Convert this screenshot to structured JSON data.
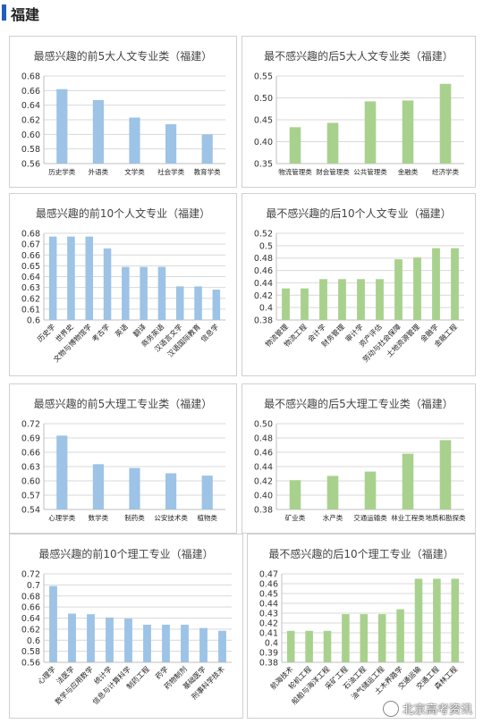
{
  "header": {
    "title": "福建"
  },
  "watermark": {
    "text": "北京高考资讯",
    "icon": "wechat-icon"
  },
  "colors": {
    "blue": "#9dc3e6",
    "green": "#a9d18e"
  },
  "chart_data": [
    {
      "type": "bar",
      "color": "blue",
      "title": "最感兴趣的前5大人文专业类（福建）",
      "categories": [
        "历史学类",
        "外语类",
        "文学类",
        "社会学类",
        "教育学类"
      ],
      "values": [
        0.662,
        0.647,
        0.623,
        0.614,
        0.6
      ],
      "ylim": [
        0.56,
        0.68
      ],
      "yticks": [
        "0.68",
        "0.66",
        "0.64",
        "0.62",
        "0.60",
        "0.58",
        "0.56"
      ],
      "label_rotate": false
    },
    {
      "type": "bar",
      "color": "green",
      "title": "最不感兴趣的后5大人文专业类（福建）",
      "categories": [
        "物流管理类",
        "财会管理类",
        "公共管理类",
        "金融类",
        "经济学类"
      ],
      "values": [
        0.433,
        0.443,
        0.492,
        0.494,
        0.532
      ],
      "ylim": [
        0.35,
        0.55
      ],
      "yticks": [
        "0.55",
        "0.50",
        "0.45",
        "0.40",
        "0.35"
      ],
      "label_rotate": false
    },
    {
      "type": "bar",
      "color": "blue",
      "title": "最感兴趣的前10个人文专业（福建）",
      "categories": [
        "历史学",
        "世界史",
        "文物与博物馆学",
        "考古学",
        "英语",
        "翻译",
        "商务英语",
        "汉语言文学",
        "汉语国际教育",
        "信息学"
      ],
      "values": [
        0.677,
        0.677,
        0.677,
        0.666,
        0.649,
        0.649,
        0.649,
        0.631,
        0.631,
        0.628
      ],
      "ylim": [
        0.6,
        0.68
      ],
      "yticks": [
        "0.68",
        "0.67",
        "0.66",
        "0.65",
        "0.64",
        "0.63",
        "0.62",
        "0.61",
        "0.6"
      ],
      "label_rotate": true
    },
    {
      "type": "bar",
      "color": "green",
      "title": "最不感兴趣的后10个人文专业（福建）",
      "categories": [
        "物流管理",
        "物流工程",
        "会计学",
        "财务管理",
        "审计学",
        "资产评估",
        "劳动与社会保障",
        "土地资源管理",
        "金融学",
        "金融工程"
      ],
      "values": [
        0.431,
        0.431,
        0.446,
        0.446,
        0.446,
        0.446,
        0.478,
        0.481,
        0.496,
        0.496
      ],
      "ylim": [
        0.38,
        0.52
      ],
      "yticks": [
        "0.52",
        "0.5",
        "0.48",
        "0.46",
        "0.44",
        "0.42",
        "0.4",
        "0.38"
      ],
      "label_rotate": true
    },
    {
      "type": "bar",
      "color": "blue",
      "title": "最感兴趣的前5大理工专业类（福建）",
      "categories": [
        "心理学类",
        "数学类",
        "制药类",
        "公安技术类",
        "植物类"
      ],
      "values": [
        0.695,
        0.635,
        0.627,
        0.616,
        0.611
      ],
      "ylim": [
        0.54,
        0.72
      ],
      "yticks": [
        "0.72",
        "0.69",
        "0.66",
        "0.63",
        "0.60",
        "0.57",
        "0.54"
      ],
      "label_rotate": false
    },
    {
      "type": "bar",
      "color": "green",
      "title": "最不感兴趣的后5大理工专业类（福建）",
      "categories": [
        "矿业类",
        "水产类",
        "交通运输类",
        "林业工程类",
        "地质和勘探类"
      ],
      "values": [
        0.421,
        0.427,
        0.433,
        0.458,
        0.477
      ],
      "ylim": [
        0.38,
        0.5
      ],
      "yticks": [
        "0.50",
        "0.48",
        "0.46",
        "0.44",
        "0.42",
        "0.40",
        "0.38"
      ],
      "label_rotate": false
    },
    {
      "type": "bar",
      "color": "blue",
      "title": "最感兴趣的前10个理工专业（福建）",
      "categories": [
        "心理学",
        "法医学",
        "数学与应用数学",
        "统计学",
        "信息与计算科学",
        "制药工程",
        "药学",
        "药物制剂",
        "基础医学",
        "刑事科学技术"
      ],
      "values": [
        0.698,
        0.648,
        0.647,
        0.641,
        0.639,
        0.628,
        0.628,
        0.628,
        0.622,
        0.617
      ],
      "ylim": [
        0.56,
        0.72
      ],
      "yticks": [
        "0.72",
        "0.7",
        "0.68",
        "0.66",
        "0.64",
        "0.62",
        "0.6",
        "0.58",
        "0.56"
      ],
      "label_rotate": true
    },
    {
      "type": "bar",
      "color": "green",
      "title": "最不感兴趣的后10个理工专业（福建）",
      "categories": [
        "航海技术",
        "轮机工程",
        "船舶与海洋工程",
        "采矿工程",
        "石油工程",
        "油气储运工程",
        "土木养路学",
        "交通运输",
        "交通工程",
        "森林工程"
      ],
      "values": [
        0.412,
        0.412,
        0.412,
        0.429,
        0.429,
        0.429,
        0.434,
        0.465,
        0.465,
        0.465
      ],
      "ylim": [
        0.38,
        0.47
      ],
      "yticks": [
        "0.47",
        "0.46",
        "0.45",
        "0.44",
        "0.43",
        "0.42",
        "0.41",
        "0.4",
        "0.39",
        "0.38"
      ],
      "label_rotate": true
    }
  ]
}
